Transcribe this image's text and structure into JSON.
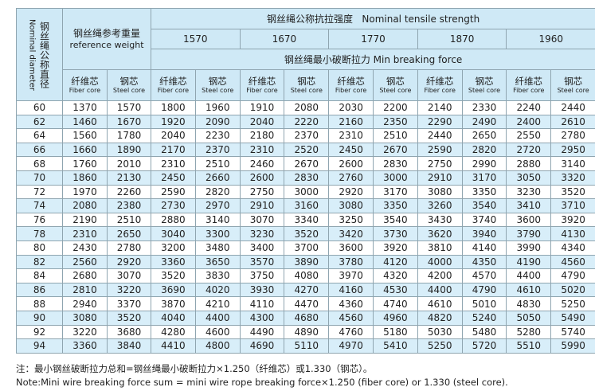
{
  "header": {
    "diameter_zh": "钢丝绳公称直径",
    "diameter_en": "Nominal diameter",
    "weight_zh": "钢丝绳参考重量",
    "weight_en": "reference weight",
    "strength": "钢丝绳公称抗拉强度   Nominal tensile strength",
    "grades": [
      1570,
      1670,
      1770,
      1870,
      1960
    ],
    "force": "钢丝绳最小破断拉力 Min breaking force",
    "core": [
      {
        "zh": "纤维芯",
        "en": "Fiber core"
      },
      {
        "zh": "钢芯",
        "en": "Steel core"
      }
    ]
  },
  "rows": [
    [
      60,
      1370,
      1570,
      1800,
      1960,
      1910,
      2080,
      2030,
      2200,
      2140,
      2330,
      2240,
      2440
    ],
    [
      62,
      1460,
      1670,
      1920,
      2090,
      2040,
      2220,
      2160,
      2350,
      2290,
      2490,
      2400,
      2610
    ],
    [
      64,
      1560,
      1780,
      2040,
      2230,
      2180,
      2370,
      2310,
      2510,
      2440,
      2650,
      2550,
      2780
    ],
    [
      66,
      1660,
      1890,
      2170,
      2370,
      2310,
      2520,
      2450,
      2670,
      2590,
      2820,
      2720,
      2950
    ],
    [
      68,
      1760,
      2010,
      2310,
      2510,
      2460,
      2670,
      2600,
      2830,
      2750,
      2990,
      2880,
      3140
    ],
    [
      70,
      1860,
      2130,
      2450,
      2660,
      2600,
      2830,
      2760,
      3000,
      2910,
      3170,
      3050,
      3320
    ],
    [
      72,
      1970,
      2260,
      2590,
      2820,
      2750,
      3000,
      2920,
      3170,
      3080,
      3350,
      3230,
      3520
    ],
    [
      74,
      2080,
      2380,
      2730,
      2970,
      2910,
      3160,
      3080,
      3350,
      3260,
      3540,
      3410,
      3710
    ],
    [
      76,
      2190,
      2510,
      2880,
      3140,
      3070,
      3340,
      3250,
      3540,
      3430,
      3740,
      3600,
      3920
    ],
    [
      78,
      2310,
      2650,
      3040,
      3300,
      3230,
      3520,
      3420,
      3730,
      3620,
      3940,
      3790,
      4130
    ],
    [
      80,
      2430,
      2780,
      3200,
      3480,
      3400,
      3700,
      3600,
      3920,
      3810,
      4140,
      3990,
      4340
    ],
    [
      82,
      2560,
      2920,
      3360,
      3650,
      3570,
      3890,
      3780,
      4120,
      4000,
      4350,
      4190,
      4560
    ],
    [
      84,
      2680,
      3070,
      3520,
      3830,
      3750,
      4080,
      3970,
      4320,
      4200,
      4570,
      4400,
      4790
    ],
    [
      86,
      2810,
      3220,
      3690,
      4020,
      3930,
      4270,
      4160,
      4530,
      4400,
      4790,
      4610,
      5020
    ],
    [
      88,
      2940,
      3370,
      3870,
      4210,
      4110,
      4470,
      4360,
      4740,
      4610,
      5010,
      4830,
      5250
    ],
    [
      90,
      3080,
      3520,
      4040,
      4400,
      4300,
      4680,
      4560,
      4960,
      4820,
      5240,
      5050,
      5490
    ],
    [
      92,
      3220,
      3680,
      4280,
      4600,
      4490,
      4890,
      4760,
      5180,
      5030,
      5480,
      5280,
      5740
    ],
    [
      94,
      3360,
      3840,
      4410,
      4800,
      4690,
      5110,
      4970,
      5410,
      5250,
      5720,
      5510,
      5990
    ]
  ],
  "notes": [
    "注：最小钢丝破断拉力总和=钢丝绳最小破断拉力×1.250（纤维芯）或1.330（钢芯）。",
    "Note:Mini wire breaking force sum = mini wire rope breaking force×1.250 (fiber core) or  1.330 (steel core)."
  ]
}
